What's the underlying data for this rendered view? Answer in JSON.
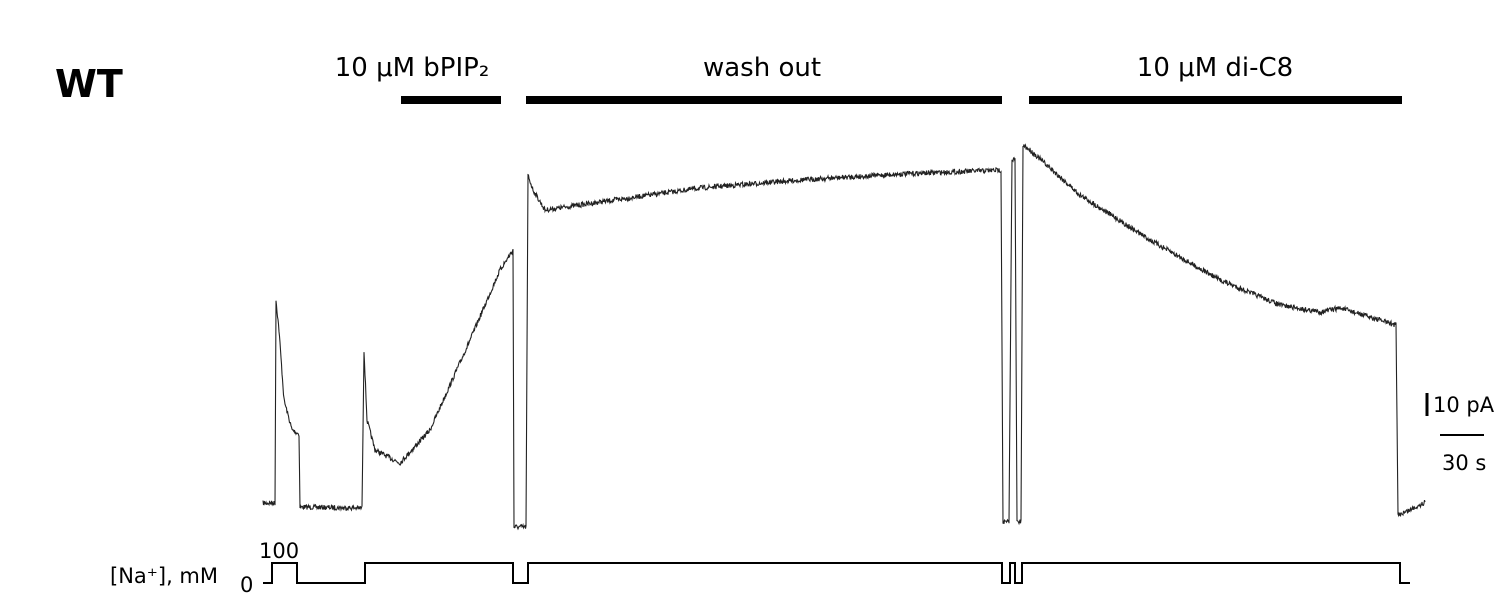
{
  "panel_label": "WT",
  "treatments": [
    {
      "label": "10 μM bPIP₂"
    },
    {
      "label": "wash out"
    },
    {
      "label": "10 μM di-C8"
    }
  ],
  "scale_bars": {
    "current": "10 pA",
    "time": "30 s"
  },
  "sodium_trace": {
    "label": "[Na⁺], mM",
    "high": "100",
    "low": "0"
  }
}
